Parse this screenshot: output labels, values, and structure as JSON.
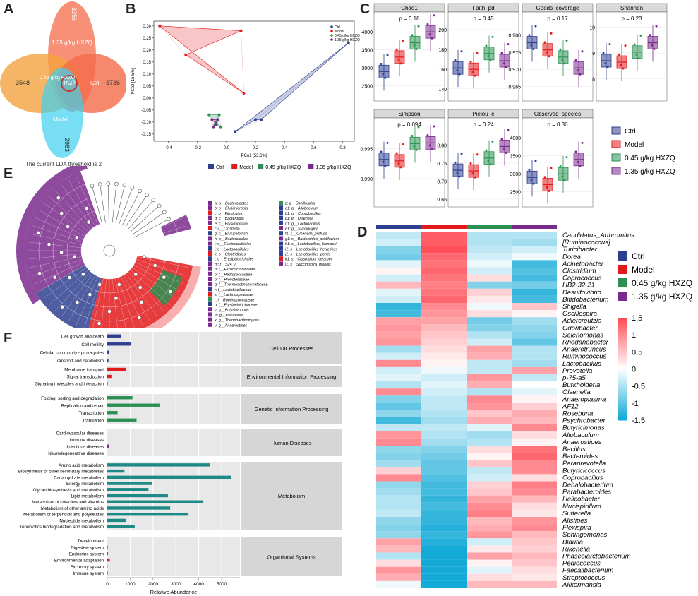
{
  "labels": {
    "A": "A",
    "B": "B",
    "C": "C",
    "D": "D",
    "E": "E",
    "F": "F"
  },
  "colors": {
    "ctrl": "#2f3f8f",
    "model": "#e31a1c",
    "low": "#2a9152",
    "high": "#7a2a8c",
    "venn_orange": "#f4a340",
    "venn_salmon": "#f46b49",
    "venn_cyan": "#3fd0f0"
  },
  "venn": {
    "sets": [
      "1.35 g/kg HXZQ",
      "0.45 g/kg HXZQ",
      "Ctrl",
      "Model"
    ],
    "counts": {
      "high_only": "3356",
      "low_only": "3548",
      "ctrl_only": "3736",
      "model_only": "2963",
      "all": "1542"
    },
    "caption": "The current LDA threshold is 2"
  },
  "pcoa": {
    "xlabel": "PCo1 [53.6%]",
    "ylabel": "PCo2 [15.5%]",
    "xticks": [
      "-0.4",
      "-0.2",
      "0.0",
      "0.2",
      "0.4",
      "0.6",
      "0.8"
    ],
    "yticks": [
      "0.30",
      "0.25",
      "0.20",
      "0.15",
      "0.10",
      "0.05",
      "0.00",
      "-0.05",
      "-0.10",
      "-0.15"
    ],
    "legend": [
      "Ctrl",
      "Model",
      "0.45 g/kg HXZQ",
      "1.35 g/kg HXZQ"
    ],
    "bottom_legend": [
      "Ctrl",
      "Model",
      "0.45 g/kg HXZQ",
      "1.35 g/kg HXZQ"
    ],
    "groups": {
      "model": [
        [
          -0.46,
          0.3
        ],
        [
          0.1,
          0.28
        ],
        [
          -0.28,
          0.18
        ],
        [
          0.12,
          0.02
        ]
      ],
      "low": [
        [
          -0.12,
          -0.07
        ],
        [
          -0.05,
          -0.07
        ],
        [
          -0.08,
          -0.11
        ],
        [
          -0.04,
          -0.12
        ],
        [
          -0.07,
          -0.1
        ]
      ],
      "high": [
        [
          -0.1,
          -0.09
        ],
        [
          -0.06,
          -0.09
        ],
        [
          -0.09,
          -0.12
        ],
        [
          -0.07,
          -0.11
        ]
      ],
      "ctrl": [
        [
          0.06,
          -0.14
        ],
        [
          0.2,
          -0.09
        ],
        [
          0.24,
          -0.09
        ],
        [
          0.84,
          0.23
        ]
      ]
    }
  },
  "alpha": {
    "panels": [
      {
        "title": "Chao1",
        "p": "p = 0.18",
        "yticks": [
          "2500",
          "3000",
          "3500",
          "4000"
        ],
        "range": [
          2200,
          4200
        ]
      },
      {
        "title": "Faith_pd",
        "p": "p = 0.45",
        "yticks": [
          "140",
          "160",
          "180",
          "200"
        ],
        "range": [
          132,
          205
        ]
      },
      {
        "title": "Goods_coverage",
        "p": "p = 0.17",
        "yticks": [
          "0.965",
          "0.970",
          "0.975",
          "0.980"
        ],
        "range": [
          0.962,
          0.983
        ]
      },
      {
        "title": "Shannon",
        "p": "p = 0.23",
        "yticks": [
          "8",
          "9",
          "10"
        ],
        "range": [
          7.3,
          10.1
        ]
      },
      {
        "title": "Simpson",
        "p": "p = 0.094",
        "yticks": [
          "0.990",
          "0.995"
        ],
        "range": [
          0.986,
          0.998
        ]
      },
      {
        "title": "Pielou_e",
        "p": "p = 0.24",
        "yticks": [
          "0.65",
          "0.70",
          "0.75",
          "0.80"
        ],
        "range": [
          0.64,
          0.84
        ]
      },
      {
        "title": "Observed_species",
        "p": "p = 0.36",
        "yticks": [
          "2500",
          "3000",
          "3500",
          "4000"
        ],
        "range": [
          2200,
          4200
        ]
      }
    ],
    "legend": [
      "Ctrl",
      "Model",
      "0.45 g/kg HXZQ",
      "1.35 g/kg HXZQ"
    ]
  },
  "heatmap": {
    "groups": [
      "Ctrl",
      "Model",
      "0.45 g/kg HXZQ",
      "1.35 g/kg HXZQ"
    ],
    "genera": [
      "Candidatus_Arthromitus",
      "[Ruminococcus]",
      "Turicibacter",
      "Dorea",
      "Acinetobacter",
      "Clostridium",
      "Coprococcus",
      "HB2-32-21",
      "Desulfovibrio",
      "Bifidobacterium",
      "Shigella",
      "Oscillospira",
      "Adlercreutzia",
      "Odoribacter",
      "Selenomonas",
      "Rhodanobacter",
      "Anaerotruncus",
      "Ruminococcus",
      "Lactobacillus",
      "Prevotella",
      "p-75-a5",
      "Burkholderia",
      "Olsenella",
      "Anaeroplasma",
      "AF12",
      "Roseburia",
      "Psychrobacter",
      "Butyricimonas",
      "Allobaculum",
      "Anaerostipes",
      "Bacillus",
      "Bacteroides",
      "Paraprevotella",
      "Butyricicoccus",
      "Coprobacillus",
      "Dehalobacterium",
      "Parabacteroides",
      "Helicobacter",
      "Mucispirillum",
      "Sutterella",
      "Alistipes",
      "Flexispira",
      "Sphingomonas",
      "Blautia",
      "Rikenella",
      "Phascolarctobacterium",
      "Pediococcus",
      "Faecalibacterium",
      "Streptococcus",
      "Akkermansia"
    ],
    "scale_ticks": [
      "1.5",
      "1",
      "0.5",
      "0",
      "-0.5",
      "-1",
      "-1.5"
    ],
    "values": [
      [
        -0.4,
        1.4,
        -0.5,
        -0.5
      ],
      [
        -0.3,
        1.4,
        -0.5,
        -0.6
      ],
      [
        -0.8,
        1.5,
        -0.4,
        -0.3
      ],
      [
        -0.9,
        1.3,
        -0.3,
        -0.1
      ],
      [
        -0.2,
        1.2,
        -0.1,
        -1.2
      ],
      [
        0.1,
        1.3,
        -0.3,
        -1.1
      ],
      [
        -0.3,
        1.2,
        0.3,
        -1.2
      ],
      [
        0.6,
        1.1,
        -0.8,
        -0.9
      ],
      [
        -0.2,
        1.2,
        0.4,
        -1.3
      ],
      [
        -0.3,
        1.3,
        0.2,
        -1.2
      ],
      [
        -1.3,
        1.0,
        -0.1,
        0.5
      ],
      [
        -1.2,
        0.9,
        0.3,
        0.1
      ],
      [
        0.8,
        0.8,
        -0.9,
        -0.6
      ],
      [
        0.9,
        0.6,
        -0.8,
        -0.7
      ],
      [
        0.8,
        0.5,
        -0.5,
        -0.8
      ],
      [
        0.9,
        0.4,
        -0.3,
        -1.0
      ],
      [
        -0.6,
        0.3,
        0.8,
        -0.5
      ],
      [
        -0.3,
        0.2,
        0.7,
        -0.5
      ],
      [
        1.0,
        0.1,
        -0.4,
        -0.6
      ],
      [
        -0.3,
        -0.1,
        -0.4,
        0.8
      ],
      [
        -0.2,
        -0.3,
        0.9,
        -0.4
      ],
      [
        -0.5,
        -0.2,
        0.7,
        0.0
      ],
      [
        1.0,
        -0.3,
        -0.5,
        -0.2
      ],
      [
        -0.8,
        -0.4,
        1.0,
        0.1
      ],
      [
        -1.0,
        -0.4,
        0.9,
        0.4
      ],
      [
        -0.7,
        -0.5,
        0.5,
        0.7
      ],
      [
        -1.2,
        -0.6,
        0.7,
        0.6
      ],
      [
        -0.4,
        -0.4,
        -0.2,
        1.0
      ],
      [
        0.9,
        -0.5,
        -0.6,
        0.3
      ],
      [
        1.0,
        -0.6,
        -0.5,
        0.1
      ],
      [
        -0.7,
        -0.8,
        0.3,
        1.2
      ],
      [
        -0.8,
        -0.9,
        0.1,
        1.3
      ],
      [
        -0.6,
        -1.0,
        0.5,
        1.0
      ],
      [
        0.4,
        -1.0,
        -0.4,
        1.0
      ],
      [
        1.0,
        -1.1,
        -0.3,
        0.3
      ],
      [
        -0.7,
        -1.2,
        0.4,
        1.1
      ],
      [
        -0.6,
        -1.2,
        0.5,
        1.0
      ],
      [
        -0.5,
        -1.3,
        0.8,
        0.6
      ],
      [
        -0.5,
        -1.2,
        1.0,
        0.3
      ],
      [
        -0.4,
        -1.3,
        1.1,
        0.2
      ],
      [
        -0.7,
        -1.3,
        0.6,
        0.9
      ],
      [
        -0.8,
        -1.4,
        0.7,
        1.0
      ],
      [
        -0.7,
        -1.3,
        0.9,
        0.6
      ],
      [
        0.8,
        -1.4,
        -0.3,
        0.5
      ],
      [
        0.6,
        -1.5,
        0.2,
        0.4
      ],
      [
        -0.5,
        -1.5,
        0.8,
        0.6
      ],
      [
        0.3,
        -1.5,
        0.1,
        0.5
      ],
      [
        0.9,
        -1.5,
        -0.2,
        0.3
      ],
      [
        0.7,
        -1.5,
        0.3,
        0.2
      ],
      [
        -0.1,
        -1.5,
        0.6,
        0.6
      ]
    ]
  },
  "lefse": {
    "legend_left": [
      "a: p__Bacteroidetes",
      "b: p__Elusimicrobia",
      "c: p__Firmicutes",
      "d: c__Bacteroidia",
      "e: c__Elusimicrobia",
      "f: c__Clostridia",
      "g: c__Erysipelotrichi",
      "h: o__Bacteroidales",
      "i: o__Elusimicrobiales",
      "j: o__Lactobacillales",
      "k: o__Clostridiales",
      "l: o__Erysipelotrichales",
      "m: f__S24_7",
      "n: f__Elusimicrobiaceae",
      "o: f__Peptococcaceae",
      "p: f__Prevotellaceae",
      "q: f__Thermoactinomycetaceae",
      "r: f__Lactobacillaceae",
      "s: f__Lachnospiraceae",
      "t: f__Ruminococcaceae",
      "u: f__Erysipelotrichaceae",
      "v: g__Butyricimonas",
      "w: g__Prevotella",
      "x: g__Thermoactinomyces",
      "y: g__Anaerostipes"
    ],
    "legend_right": [
      "z: g__Oscillospira",
      "a1: g__Allobaculum",
      "b1: g__Coprobacillus",
      "c1: g__Olsenella",
      "d1: g__Lactobacillus",
      "e1: g__Succinispira",
      "f1: s__Olsenella_profusa",
      "g1: s__Bacteroides_acidifaciens",
      "h1: s__Lactobacillus_hamsteri",
      "i1: s__Lactobacillus_helveticus",
      "j1: s__Lactobacillus_pontis",
      "k1: s__Clostridium_celatum",
      "l1: s__Succinispira_mobilis"
    ],
    "legend_left_colors": [
      "#7a2a8c",
      "#7a2a8c",
      "#e31a1c",
      "#7a2a8c",
      "#7a2a8c",
      "#e31a1c",
      "#2f3f8f",
      "#7a2a8c",
      "#7a2a8c",
      "#2f3f8f",
      "#e31a1c",
      "#2f3f8f",
      "#7a2a8c",
      "#7a2a8c",
      "#7a2a8c",
      "#7a2a8c",
      "#7a2a8c",
      "#2f3f8f",
      "#e31a1c",
      "#2a9152",
      "#2f3f8f",
      "#7a2a8c",
      "#7a2a8c",
      "#7a2a8c",
      "#7a2a8c"
    ],
    "legend_right_colors": [
      "#2a9152",
      "#2f3f8f",
      "#2f3f8f",
      "#2f3f8f",
      "#2f3f8f",
      "#7a2a8c",
      "#2f3f8f",
      "#7a2a8c",
      "#2f3f8f",
      "#2f3f8f",
      "#2f3f8f",
      "#e31a1c",
      "#7a2a8c"
    ]
  },
  "kegg": {
    "xlabel": "Relative Abundance",
    "xticks": [
      "0",
      "1000",
      "2000",
      "3000",
      "4000",
      "5000"
    ],
    "categories": [
      {
        "name": "Cellular Processes",
        "items": [
          [
            "Cell growth and death",
            600,
            "#2f3f8f"
          ],
          [
            "Cell motility",
            1050,
            "#2f3f8f"
          ],
          [
            "Cellular community - prokaryotes",
            80,
            "#2f3f8f"
          ],
          [
            "Transport and catabolism",
            50,
            "#2f3f8f"
          ]
        ]
      },
      {
        "name": "Environmental Information Processing",
        "items": [
          [
            "Membrane transport",
            800,
            "#e31a1c"
          ],
          [
            "Signal transduction",
            180,
            "#e31a1c"
          ],
          [
            "Signaling molecules and interaction",
            20,
            "#e31a1c"
          ]
        ]
      },
      {
        "name": "Genetic Information Processing",
        "items": [
          [
            "Folding, sorting and degradation",
            1100,
            "#2a9152"
          ],
          [
            "Replication and repair",
            2300,
            "#2a9152"
          ],
          [
            "Transcription",
            450,
            "#2a9152"
          ],
          [
            "Translation",
            1280,
            "#2a9152"
          ]
        ]
      },
      {
        "name": "Human Diseases",
        "items": [
          [
            "Cardiovascular diseases",
            0,
            "#7a2a8c"
          ],
          [
            "Immune diseases",
            0,
            "#7a2a8c"
          ],
          [
            "Infectious diseases",
            80,
            "#7a2a8c"
          ],
          [
            "Neurodegenerative diseases",
            0,
            "#7a2a8c"
          ]
        ]
      },
      {
        "name": "Metabolism",
        "items": [
          [
            "Amino acid metabolism",
            4500,
            "#1e8a86"
          ],
          [
            "Biosynthesis of other secondary metabolites",
            750,
            "#1e8a86"
          ],
          [
            "Carbohydrate metabolism",
            5400,
            "#1e8a86"
          ],
          [
            "Energy metabolism",
            1950,
            "#1e8a86"
          ],
          [
            "Glycan biosynthesis and metabolism",
            1800,
            "#1e8a86"
          ],
          [
            "Lipid metabolism",
            2650,
            "#1e8a86"
          ],
          [
            "Metabolism of cofactors and vitamins",
            4200,
            "#1e8a86"
          ],
          [
            "Metabolism of other amino acids",
            2750,
            "#1e8a86"
          ],
          [
            "Metabolism of terpenoids and polyketides",
            3550,
            "#1e8a86"
          ],
          [
            "Nucleotide metabolism",
            800,
            "#1e8a86"
          ],
          [
            "Xenobiotics biodegradation and metabolism",
            1200,
            "#1e8a86"
          ]
        ]
      },
      {
        "name": "Organismal Systems",
        "items": [
          [
            "Development",
            0,
            "#e31a1c"
          ],
          [
            "Digestive system",
            20,
            "#e31a1c"
          ],
          [
            "Endocrine system",
            30,
            "#e31a1c"
          ],
          [
            "Environmental adaptation",
            110,
            "#e31a1c"
          ],
          [
            "Excretory system",
            10,
            "#e31a1c"
          ],
          [
            "Immune system",
            20,
            "#e31a1c"
          ]
        ]
      }
    ]
  }
}
